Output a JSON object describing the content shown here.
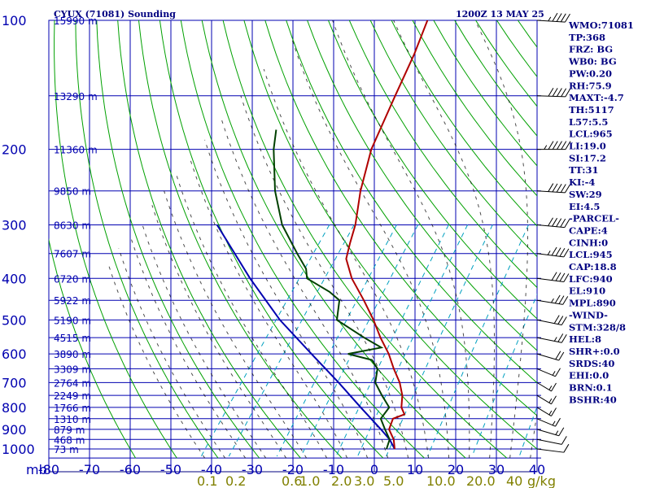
{
  "header": {
    "station": "CYUX (71081) Sounding",
    "datetime": "1200Z 13 MAY 25"
  },
  "chart_data": {
    "type": "skew-t",
    "pressure_levels": [
      100,
      200,
      300,
      400,
      500,
      600,
      700,
      800,
      900,
      1000
    ],
    "temperature_ticks": [
      -80,
      -70,
      -60,
      -50,
      -40,
      -30,
      -20,
      -10,
      0,
      10,
      20,
      30,
      40
    ],
    "pressure_unit_label": "mb",
    "height_labels": [
      {
        "p": 100,
        "label": "15990 m"
      },
      {
        "p": 150,
        "label": "13290 m"
      },
      {
        "p": 200,
        "label": "11360 m"
      },
      {
        "p": 250,
        "label": "9850 m"
      },
      {
        "p": 300,
        "label": "8630 m"
      },
      {
        "p": 350,
        "label": "7607 m"
      },
      {
        "p": 400,
        "label": "6720 m"
      },
      {
        "p": 450,
        "label": "5922 m"
      },
      {
        "p": 500,
        "label": "5190 m"
      },
      {
        "p": 550,
        "label": "4515 m"
      },
      {
        "p": 600,
        "label": "3890 m"
      },
      {
        "p": 650,
        "label": "3309 m"
      },
      {
        "p": 700,
        "label": "2764 m"
      },
      {
        "p": 750,
        "label": "2249 m"
      },
      {
        "p": 800,
        "label": "1766 m"
      },
      {
        "p": 850,
        "label": "1310 m"
      },
      {
        "p": 900,
        "label": "879 m"
      },
      {
        "p": 950,
        "label": "468 m"
      },
      {
        "p": 1000,
        "label": "73 m"
      }
    ],
    "mixing_ratio_labels": [
      "0.1",
      "0.2",
      "0.6",
      "1.0",
      "2.0",
      "3.0",
      "5.0",
      "10.0",
      "20.0",
      "40",
      "g/kg"
    ],
    "temperature_profile": [
      {
        "p": 100,
        "t": -66
      },
      {
        "p": 120,
        "t": -63
      },
      {
        "p": 150,
        "t": -60
      },
      {
        "p": 200,
        "t": -56
      },
      {
        "p": 250,
        "t": -51
      },
      {
        "p": 300,
        "t": -46
      },
      {
        "p": 330,
        "t": -44
      },
      {
        "p": 360,
        "t": -42
      },
      {
        "p": 400,
        "t": -37
      },
      {
        "p": 450,
        "t": -30
      },
      {
        "p": 500,
        "t": -24
      },
      {
        "p": 550,
        "t": -19
      },
      {
        "p": 600,
        "t": -14
      },
      {
        "p": 650,
        "t": -10
      },
      {
        "p": 700,
        "t": -6
      },
      {
        "p": 750,
        "t": -3
      },
      {
        "p": 800,
        "t": -1
      },
      {
        "p": 830,
        "t": 1
      },
      {
        "p": 850,
        "t": -1
      },
      {
        "p": 900,
        "t": 0
      },
      {
        "p": 950,
        "t": 3
      },
      {
        "p": 1000,
        "t": 5
      }
    ],
    "dewpoint_profile": [
      {
        "p": 180,
        "t": -83
      },
      {
        "p": 200,
        "t": -80
      },
      {
        "p": 250,
        "t": -72
      },
      {
        "p": 300,
        "t": -64
      },
      {
        "p": 350,
        "t": -55
      },
      {
        "p": 380,
        "t": -50
      },
      {
        "p": 400,
        "t": -48
      },
      {
        "p": 430,
        "t": -40
      },
      {
        "p": 450,
        "t": -36
      },
      {
        "p": 500,
        "t": -33
      },
      {
        "p": 550,
        "t": -23
      },
      {
        "p": 580,
        "t": -17
      },
      {
        "p": 600,
        "t": -24
      },
      {
        "p": 620,
        "t": -17
      },
      {
        "p": 650,
        "t": -14
      },
      {
        "p": 700,
        "t": -12
      },
      {
        "p": 750,
        "t": -8
      },
      {
        "p": 800,
        "t": -4
      },
      {
        "p": 850,
        "t": -4
      },
      {
        "p": 900,
        "t": -1
      },
      {
        "p": 950,
        "t": 2
      },
      {
        "p": 1000,
        "t": 3
      }
    ],
    "parcel_profile": [
      {
        "p": 300,
        "t": -80
      },
      {
        "p": 400,
        "t": -62
      },
      {
        "p": 500,
        "t": -47
      },
      {
        "p": 600,
        "t": -33
      },
      {
        "p": 700,
        "t": -21
      },
      {
        "p": 800,
        "t": -11
      },
      {
        "p": 900,
        "t": -2
      },
      {
        "p": 950,
        "t": 2
      },
      {
        "p": 1000,
        "t": 5
      }
    ],
    "wind_barbs": [
      {
        "p": 100,
        "dir": 280,
        "spd": 45
      },
      {
        "p": 150,
        "dir": 275,
        "spd": 50
      },
      {
        "p": 200,
        "dir": 270,
        "spd": 55
      },
      {
        "p": 250,
        "dir": 280,
        "spd": 50
      },
      {
        "p": 300,
        "dir": 285,
        "spd": 50
      },
      {
        "p": 350,
        "dir": 290,
        "spd": 45
      },
      {
        "p": 400,
        "dir": 290,
        "spd": 40
      },
      {
        "p": 450,
        "dir": 295,
        "spd": 35
      },
      {
        "p": 500,
        "dir": 300,
        "spd": 30
      },
      {
        "p": 550,
        "dir": 300,
        "spd": 25
      },
      {
        "p": 600,
        "dir": 310,
        "spd": 20
      },
      {
        "p": 650,
        "dir": 320,
        "spd": 15
      },
      {
        "p": 700,
        "dir": 330,
        "spd": 15
      },
      {
        "p": 750,
        "dir": 330,
        "spd": 15
      },
      {
        "p": 800,
        "dir": 330,
        "spd": 15
      },
      {
        "p": 850,
        "dir": 320,
        "spd": 15
      },
      {
        "p": 900,
        "dir": 310,
        "spd": 15
      },
      {
        "p": 950,
        "dir": 300,
        "spd": 10
      },
      {
        "p": 1000,
        "dir": 290,
        "spd": 10
      }
    ],
    "colors": {
      "frame": "#000080",
      "isobar": "#0000b0",
      "isotherm": "#0000b0",
      "dry_adiabat": "#00a000",
      "moist_adiabat": "#000000",
      "mixing_ratio": "#00a0c0",
      "temperature": "#b00000",
      "dewpoint": "#004000",
      "parcel": "#0000b0",
      "mixing_label": "#808000"
    }
  },
  "indices": [
    "WMO:71081",
    "TP:368",
    "FRZ: BG",
    "WB0: BG",
    "PW:0.20",
    "RH:75.9",
    "MAXT:-4.7",
    "TH:5117",
    "L57:5.5",
    "LCL:965",
    "LI:19.0",
    "SI:17.2",
    "TT:31",
    "KI:-4",
    "SW:29",
    "EI:4.5",
    "-PARCEL-",
    "CAPE:4",
    "CINH:0",
    "LCL:945",
    "CAP:18.8",
    "LFC:940",
    "EL:910",
    "MPL:890",
    "-WIND-",
    "STM:328/8",
    "HEL:8",
    "SHR+:0.0",
    "SRDS:40",
    "EHI:0.0",
    "BRN:0.1",
    "BSHR:40"
  ]
}
